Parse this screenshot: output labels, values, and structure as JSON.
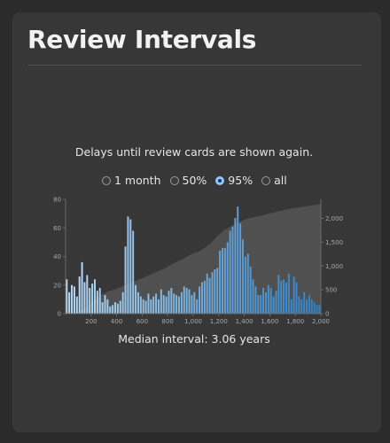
{
  "title": "Review Intervals",
  "subtitle": "Delays until review cards are shown again.",
  "range_options": [
    {
      "label": "1 month",
      "checked": false
    },
    {
      "label": "50%",
      "checked": false
    },
    {
      "label": "95%",
      "checked": true
    },
    {
      "label": "all",
      "checked": false
    }
  ],
  "median_label": "Median interval:",
  "median_value": "3.06 years",
  "colors": {
    "bar_light": "#b9dcf7",
    "bar_dark": "#2e7fc4",
    "cumulative_area": "#555555",
    "axis": "#6a6a6a",
    "accent": "#8ec8ff"
  },
  "chart_data": {
    "type": "bar",
    "xlabel": "",
    "ylabel": "",
    "xlim": [
      0,
      2000
    ],
    "ylim": [
      0,
      80
    ],
    "y2lim": [
      0,
      2400
    ],
    "x_ticks": [
      "200",
      "400",
      "600",
      "800",
      "1,000",
      "1,200",
      "1,400",
      "1,600",
      "1,800",
      "2,000"
    ],
    "y_ticks": [
      "0",
      "20",
      "40",
      "60",
      "80"
    ],
    "y2_ticks": [
      "0",
      "500",
      "1,000",
      "1,500",
      "2,000"
    ],
    "bin_width": 20,
    "values": [
      24,
      15,
      20,
      19,
      12,
      26,
      36,
      22,
      27,
      18,
      21,
      24,
      16,
      18,
      8,
      13,
      10,
      5,
      6,
      8,
      7,
      9,
      15,
      47,
      68,
      66,
      58,
      20,
      15,
      12,
      10,
      9,
      14,
      10,
      12,
      14,
      10,
      17,
      13,
      12,
      16,
      18,
      14,
      13,
      12,
      15,
      19,
      18,
      17,
      13,
      15,
      10,
      19,
      22,
      23,
      28,
      25,
      29,
      31,
      32,
      44,
      46,
      46,
      50,
      58,
      61,
      67,
      75,
      63,
      52,
      40,
      42,
      33,
      24,
      19,
      13,
      13,
      18,
      15,
      20,
      18,
      12,
      16,
      27,
      23,
      24,
      22,
      28,
      10,
      26,
      22,
      12,
      10,
      15,
      10,
      13,
      10,
      8,
      6,
      6
    ],
    "cumulative": [
      5,
      11,
      20,
      34,
      45,
      61,
      98,
      129,
      177,
      220,
      266,
      320,
      361,
      404,
      421,
      451,
      477,
      489,
      503,
      523,
      544,
      567,
      590,
      612,
      634,
      656,
      678,
      700,
      722,
      745,
      768,
      791,
      814,
      839,
      862,
      886,
      910,
      934,
      958,
      983,
      1020,
      1046,
      1072,
      1098,
      1120,
      1145,
      1180,
      1210,
      1240,
      1262,
      1285,
      1300,
      1330,
      1360,
      1400,
      1445,
      1490,
      1540,
      1600,
      1650,
      1700,
      1745,
      1780,
      1810,
      1840,
      1870,
      1900,
      1925,
      1950,
      1970,
      1990,
      2005,
      2018,
      2030,
      2042,
      2055,
      2065,
      2075,
      2090,
      2105,
      2118,
      2130,
      2142,
      2155,
      2168,
      2180,
      2192,
      2204,
      2212,
      2220,
      2228,
      2236,
      2244,
      2252,
      2260,
      2268,
      2276,
      2284,
      2292,
      2300
    ]
  }
}
